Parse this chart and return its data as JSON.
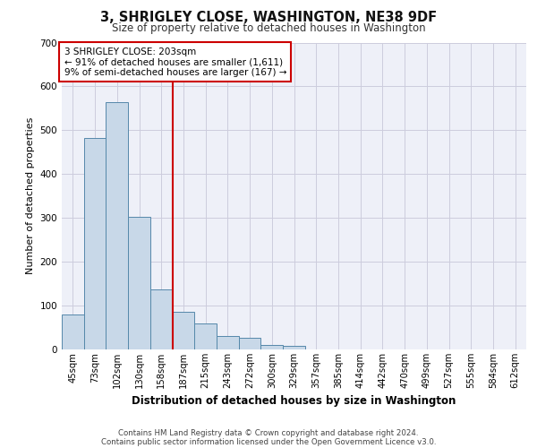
{
  "title_line1": "3, SHRIGLEY CLOSE, WASHINGTON, NE38 9DF",
  "title_line2": "Size of property relative to detached houses in Washington",
  "xlabel": "Distribution of detached houses by size in Washington",
  "ylabel": "Number of detached properties",
  "categories": [
    "45sqm",
    "73sqm",
    "102sqm",
    "130sqm",
    "158sqm",
    "187sqm",
    "215sqm",
    "243sqm",
    "272sqm",
    "300sqm",
    "329sqm",
    "357sqm",
    "385sqm",
    "414sqm",
    "442sqm",
    "470sqm",
    "499sqm",
    "527sqm",
    "555sqm",
    "584sqm",
    "612sqm"
  ],
  "bar_values": [
    80,
    482,
    565,
    303,
    136,
    85,
    60,
    30,
    26,
    10,
    9,
    0,
    0,
    0,
    0,
    0,
    0,
    0,
    0,
    0,
    0
  ],
  "bar_color": "#c8d8e8",
  "bar_edge_color": "#5588aa",
  "grid_color": "#ccccdd",
  "background_color": "#eef0f8",
  "vline_after_bar": 5,
  "vline_color": "#cc0000",
  "annotation_text": "3 SHRIGLEY CLOSE: 203sqm\n← 91% of detached houses are smaller (1,611)\n9% of semi-detached houses are larger (167) →",
  "annotation_box_color": "#cc0000",
  "footer_line1": "Contains HM Land Registry data © Crown copyright and database right 2024.",
  "footer_line2": "Contains public sector information licensed under the Open Government Licence v3.0.",
  "ylim": [
    0,
    700
  ],
  "yticks": [
    0,
    100,
    200,
    300,
    400,
    500,
    600,
    700
  ]
}
